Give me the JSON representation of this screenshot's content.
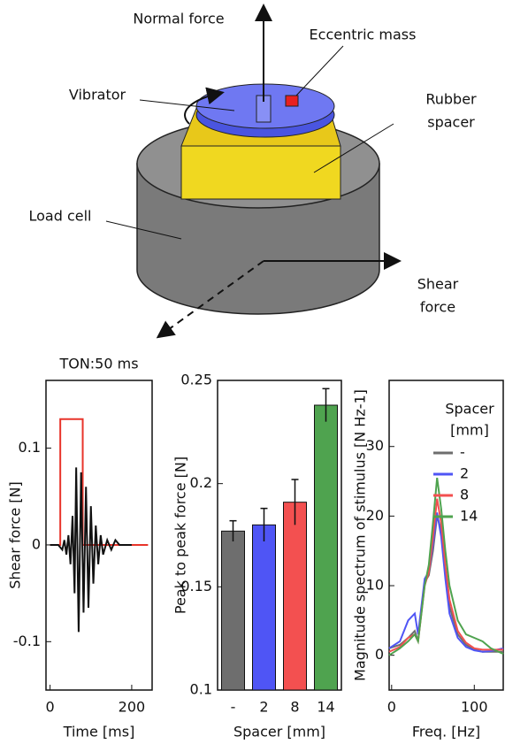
{
  "diagram": {
    "labels": [
      {
        "lines": [
          "Normal force"
        ]
      },
      {
        "lines": [
          "Eccentric mass"
        ]
      },
      {
        "lines": [
          "Vibrator"
        ]
      },
      {
        "lines": [
          "Rubber",
          "spacer"
        ]
      },
      {
        "lines": [
          "Load cell"
        ]
      },
      {
        "lines": [
          "Shear",
          "force"
        ]
      }
    ]
  },
  "chart_data": [
    {
      "type": "line",
      "title": "TON:50 ms",
      "xlabel": "Time [ms]",
      "ylabel": "Shear force [N]",
      "xlim": [
        -10,
        250
      ],
      "xticks": [
        0,
        200
      ],
      "ylim": [
        -0.15,
        0.17
      ],
      "yticks": [
        -0.1,
        0,
        0.1
      ],
      "series": [
        {
          "color": "#e8342a",
          "x": [
            0,
            25,
            25,
            80,
            80,
            240
          ],
          "values": [
            0,
            0,
            0.13,
            0.13,
            0,
            0
          ]
        },
        {
          "color": "#111111",
          "x": [
            0,
            20,
            30,
            35,
            40,
            45,
            50,
            55,
            60,
            64,
            70,
            76,
            82,
            88,
            94,
            100,
            106,
            112,
            118,
            124,
            130,
            140,
            150,
            160,
            170,
            200
          ],
          "values": [
            0,
            0,
            -0.005,
            0.005,
            -0.01,
            0.01,
            -0.02,
            0.03,
            -0.05,
            0.08,
            -0.09,
            0.075,
            -0.07,
            0.06,
            -0.065,
            0.04,
            -0.04,
            0.02,
            -0.02,
            0.01,
            -0.01,
            0.005,
            -0.005,
            0.005,
            0,
            0
          ]
        }
      ]
    },
    {
      "type": "bar",
      "xlabel": "Spacer [mm]",
      "ylabel": "Peak to peak force [N]",
      "categories": [
        "-",
        "2",
        "8",
        "14"
      ],
      "values": [
        0.177,
        0.18,
        0.191,
        0.238
      ],
      "errors": [
        0.005,
        0.008,
        0.011,
        0.008
      ],
      "colors": [
        "#6e6e6e",
        "#4f55f5",
        "#f35050",
        "#4fa34f"
      ],
      "ylim": [
        0.1,
        0.25
      ],
      "yticks": [
        0.1,
        0.15,
        0.2,
        0.25
      ]
    },
    {
      "type": "line",
      "xlabel": "Freq. [Hz]",
      "ylabel": "Magnitude spectrum of stimulus [N Hz-1]",
      "legend": true,
      "legend_title": [
        "Spacer",
        "[mm]"
      ],
      "xlim": [
        -3,
        135
      ],
      "xticks": [
        0,
        100
      ],
      "ylim": [
        -5,
        39.5
      ],
      "yticks": [
        0,
        10,
        20,
        30
      ],
      "series": [
        {
          "name": "-",
          "color": "#6e6e6e",
          "x": [
            -3,
            10,
            20,
            28,
            32,
            40,
            45,
            50,
            55,
            60,
            65,
            70,
            80,
            90,
            100,
            110,
            120,
            135
          ],
          "values": [
            1,
            1.5,
            2.5,
            3.5,
            2,
            10.5,
            11.5,
            15,
            20,
            18,
            12.5,
            7,
            3,
            1.5,
            0.8,
            0.5,
            0.5,
            0.5
          ]
        },
        {
          "name": "2",
          "color": "#4f55f5",
          "x": [
            -3,
            10,
            20,
            28,
            32,
            40,
            45,
            50,
            55,
            60,
            65,
            70,
            80,
            90,
            100,
            110,
            120,
            135
          ],
          "values": [
            1,
            2,
            5,
            6,
            3,
            11,
            12,
            16,
            20.5,
            17,
            11,
            6,
            2.5,
            1.2,
            0.7,
            0.5,
            0.6,
            1
          ]
        },
        {
          "name": "8",
          "color": "#f35050",
          "x": [
            -3,
            10,
            20,
            28,
            32,
            40,
            45,
            50,
            55,
            60,
            65,
            70,
            80,
            90,
            100,
            110,
            120,
            135
          ],
          "values": [
            0.5,
            1.2,
            2.5,
            3,
            2,
            10,
            12,
            17,
            22.5,
            19,
            13,
            8,
            3.5,
            1.8,
            1,
            0.8,
            0.8,
            0.8
          ]
        },
        {
          "name": "14",
          "color": "#4fa34f",
          "x": [
            -3,
            10,
            20,
            28,
            32,
            40,
            45,
            50,
            55,
            60,
            65,
            70,
            80,
            90,
            100,
            110,
            120,
            135
          ],
          "values": [
            0,
            1,
            2,
            3,
            2,
            10,
            13,
            19,
            25.5,
            21,
            15,
            10,
            5,
            3,
            2.5,
            2,
            1,
            0.2
          ]
        }
      ]
    }
  ]
}
